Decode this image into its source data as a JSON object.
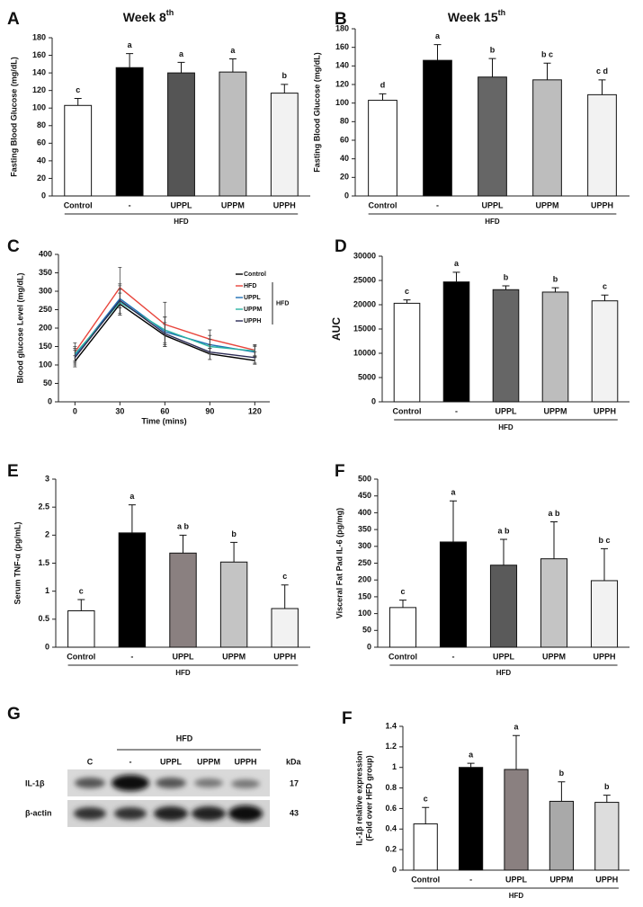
{
  "chart_data": [
    {
      "type": "bar",
      "panel": "A",
      "title": "Week 8",
      "title_sup": "th",
      "ylabel": "Fasting Blood Glucose (mg/dL)",
      "categories": [
        "Control",
        "-",
        "UPPL",
        "UPPM",
        "UPPH"
      ],
      "group_label": "HFD",
      "values": [
        103,
        146,
        140,
        141,
        117
      ],
      "errors": [
        8,
        16,
        12,
        15,
        10
      ],
      "annotations": [
        "c",
        "a",
        "a",
        "a",
        "b"
      ],
      "colors": [
        "#ffffff",
        "#000000",
        "#555555",
        "#bdbdbd",
        "#f2f2f2"
      ],
      "ylim": [
        0,
        180
      ],
      "yticks": [
        0,
        20,
        40,
        60,
        80,
        100,
        120,
        140,
        160,
        180
      ]
    },
    {
      "type": "bar",
      "panel": "B",
      "title": "Week 15",
      "title_sup": "th",
      "ylabel": "Fasting Blood Glucose (mg/dL)",
      "categories": [
        "Control",
        "-",
        "UPPL",
        "UPPM",
        "UPPH"
      ],
      "group_label": "HFD",
      "values": [
        103,
        146,
        128,
        125,
        109
      ],
      "errors": [
        7,
        17,
        20,
        18,
        16
      ],
      "annotations": [
        "d",
        "a",
        "b",
        "b c",
        "c d"
      ],
      "colors": [
        "#ffffff",
        "#000000",
        "#666666",
        "#bdbdbd",
        "#f2f2f2"
      ],
      "ylim": [
        0,
        180
      ],
      "yticks": [
        0,
        20,
        40,
        60,
        80,
        100,
        120,
        140,
        160,
        180
      ]
    },
    {
      "type": "line",
      "panel": "C",
      "ylabel": "Blood glucose Level (mg/dL)",
      "xlabel": "Time (mins)",
      "x": [
        0,
        30,
        60,
        90,
        120
      ],
      "xlim": [
        -11,
        130
      ],
      "xticks": [
        0,
        30,
        60,
        90,
        120
      ],
      "ylim": [
        0,
        400
      ],
      "yticks": [
        0,
        50,
        100,
        150,
        200,
        250,
        300,
        350,
        400
      ],
      "legend_group": "HFD",
      "series": [
        {
          "name": "Control",
          "color": "#000000",
          "values": [
            110,
            265,
            180,
            130,
            112
          ],
          "errors": [
            15,
            30,
            30,
            15,
            10
          ]
        },
        {
          "name": "HFD",
          "color": "#e8453c",
          "values": [
            135,
            310,
            210,
            170,
            140
          ],
          "errors": [
            25,
            55,
            60,
            25,
            15
          ]
        },
        {
          "name": "UPPL",
          "color": "#1f6fb5",
          "values": [
            125,
            280,
            190,
            155,
            135
          ],
          "errors": [
            20,
            40,
            40,
            25,
            15
          ]
        },
        {
          "name": "UPPM",
          "color": "#2bb3a3",
          "values": [
            130,
            270,
            195,
            150,
            138
          ],
          "errors": [
            20,
            35,
            35,
            20,
            15
          ]
        },
        {
          "name": "UPPH",
          "color": "#2b2b55",
          "values": [
            120,
            275,
            185,
            135,
            120
          ],
          "errors": [
            20,
            40,
            30,
            20,
            15
          ]
        }
      ]
    },
    {
      "type": "bar",
      "panel": "D",
      "ylabel": "AUC",
      "categories": [
        "Control",
        "-",
        "UPPL",
        "UPPM",
        "UPPH"
      ],
      "group_label": "HFD",
      "values": [
        20300,
        24700,
        23100,
        22600,
        20800
      ],
      "errors": [
        700,
        2000,
        800,
        900,
        1200
      ],
      "annotations": [
        "c",
        "a",
        "b",
        "b",
        "c"
      ],
      "colors": [
        "#ffffff",
        "#000000",
        "#666666",
        "#bdbdbd",
        "#f2f2f2"
      ],
      "ylim": [
        0,
        30000
      ],
      "yticks": [
        0,
        5000,
        10000,
        15000,
        20000,
        25000,
        30000
      ]
    },
    {
      "type": "bar",
      "panel": "E",
      "ylabel": "Serum TNF-α (pg/mL)",
      "categories": [
        "Control",
        "-",
        "UPPL",
        "UPPM",
        "UPPH"
      ],
      "group_label": "HFD",
      "values": [
        0.65,
        2.04,
        1.68,
        1.52,
        0.69
      ],
      "errors": [
        0.2,
        0.5,
        0.32,
        0.35,
        0.42
      ],
      "annotations": [
        "c",
        "a",
        "a b",
        "b",
        "c"
      ],
      "colors": [
        "#ffffff",
        "#000000",
        "#8a8080",
        "#c4c4c4",
        "#f2f2f2"
      ],
      "ylim": [
        0,
        3
      ],
      "yticks": [
        0,
        0.5,
        1,
        1.5,
        2,
        2.5,
        3
      ]
    },
    {
      "type": "bar",
      "panel": "F",
      "ylabel": "Visceral Fat Pad IL-6 (pg/mg)",
      "categories": [
        "Control",
        "-",
        "UPPL",
        "UPPM",
        "UPPH"
      ],
      "group_label": "HFD",
      "values": [
        118,
        313,
        244,
        263,
        198
      ],
      "errors": [
        22,
        122,
        77,
        110,
        95
      ],
      "annotations": [
        "c",
        "a",
        "a b",
        "a b",
        "b c"
      ],
      "colors": [
        "#ffffff",
        "#000000",
        "#5a5a5a",
        "#c4c4c4",
        "#f2f2f2"
      ],
      "ylim": [
        0,
        500
      ],
      "yticks": [
        0,
        50,
        100,
        150,
        200,
        250,
        300,
        350,
        400,
        450,
        500
      ]
    },
    {
      "type": "bar",
      "panel": "F",
      "ylabel": "IL-1β relative expression",
      "ylabel2": "(Fold over HFD group)",
      "categories": [
        "Control",
        "-",
        "UPPL",
        "UPPM",
        "UPPH"
      ],
      "group_label": "HFD",
      "values": [
        0.45,
        1.0,
        0.98,
        0.67,
        0.66
      ],
      "errors": [
        0.16,
        0.04,
        0.33,
        0.19,
        0.07
      ],
      "annotations": [
        "c",
        "a",
        "a",
        "b",
        "b"
      ],
      "colors": [
        "#ffffff",
        "#000000",
        "#8a8080",
        "#a9a9a9",
        "#dddddd"
      ],
      "ylim": [
        0,
        1.4
      ],
      "yticks": [
        0,
        0.2,
        0.4,
        0.6,
        0.8,
        1,
        1.2,
        1.4
      ]
    }
  ],
  "blot": {
    "panel": "G",
    "group": "HFD",
    "lanes": [
      "C",
      "-",
      "UPPL",
      "UPPM",
      "UPPH"
    ],
    "unit": "kDa",
    "rows": [
      {
        "name": "IL-1β",
        "kda": "17"
      },
      {
        "name": "β-actin",
        "kda": "43"
      }
    ]
  }
}
